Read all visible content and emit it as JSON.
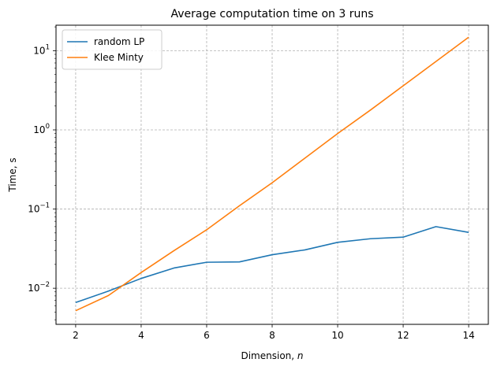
{
  "chart_data": {
    "type": "line",
    "title": "Average computation time on 3 runs",
    "xlabel": "Dimension, ",
    "xlabel_var": "n",
    "ylabel": "Time, s",
    "xlim": [
      1.4,
      14.6
    ],
    "ylim": [
      0.0035,
      21
    ],
    "yscale": "log",
    "grid": true,
    "legend_position": "top-left",
    "x_ticks": [
      2,
      4,
      6,
      8,
      10,
      12,
      14
    ],
    "y_ticks": [
      {
        "value": 0.01,
        "base": "10",
        "exp": "−2"
      },
      {
        "value": 0.1,
        "base": "10",
        "exp": "−1"
      },
      {
        "value": 1,
        "base": "10",
        "exp": "0"
      },
      {
        "value": 10,
        "base": "10",
        "exp": "1"
      }
    ],
    "x": [
      2,
      3,
      4,
      5,
      6,
      7,
      8,
      9,
      10,
      11,
      12,
      13,
      14
    ],
    "series": [
      {
        "name": "random LP",
        "color": "#1f77b4",
        "values": [
          0.0066,
          0.0092,
          0.0133,
          0.018,
          0.0213,
          0.0215,
          0.0265,
          0.0305,
          0.038,
          0.0422,
          0.0442,
          0.06,
          0.0508
        ]
      },
      {
        "name": "Klee Minty",
        "color": "#ff7f0e",
        "values": [
          0.0052,
          0.0081,
          0.0158,
          0.0298,
          0.0548,
          0.11,
          0.215,
          0.44,
          0.9,
          1.78,
          3.6,
          7.3,
          14.8
        ]
      }
    ]
  }
}
